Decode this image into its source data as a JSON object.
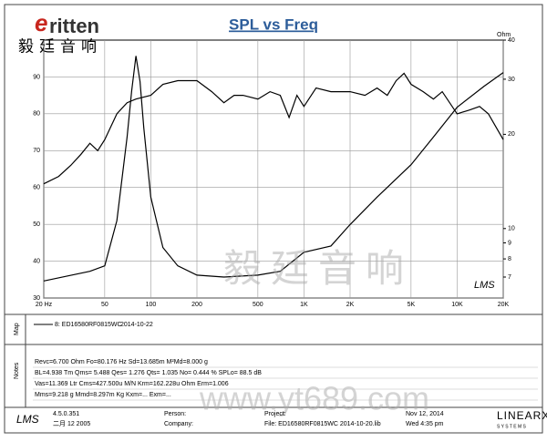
{
  "header": {
    "logo": "ritten",
    "logo_cn": "毅廷音响"
  },
  "watermark": {
    "cn": "毅廷音响",
    "url": "www.yt689.com"
  },
  "chart_data": {
    "type": "line",
    "title": "SPL vs Freq",
    "y2_label": "Ohm",
    "x_scale": "log",
    "y2_scale": "log",
    "grid": true,
    "xlim": [
      20,
      20000
    ],
    "xticks": [
      {
        "value": 20,
        "label": "20  Hz"
      },
      50,
      100,
      200,
      500,
      {
        "value": 1000,
        "label": "1K"
      },
      {
        "value": 2000,
        "label": "2K"
      },
      {
        "value": 5000,
        "label": "5K"
      },
      {
        "value": 10000,
        "label": "10K"
      },
      {
        "value": 20000,
        "label": "20K"
      }
    ],
    "ylim": [
      30,
      100
    ],
    "yticks": [
      30,
      40,
      50,
      60,
      70,
      80,
      90
    ],
    "y2lim": [
      6,
      40
    ],
    "y2ticks": [
      7,
      8,
      9,
      10,
      20,
      30,
      40
    ],
    "series": [
      {
        "name": "8: ED16580RF0815WC",
        "color": "#000000",
        "x": [
          20,
          25,
          30,
          35,
          40,
          45,
          50,
          60,
          70,
          80,
          100,
          120,
          150,
          200,
          250,
          300,
          350,
          400,
          500,
          600,
          700,
          800,
          900,
          1000,
          1200,
          1500,
          2000,
          2500,
          3000,
          3500,
          4000,
          4500,
          5000,
          6000,
          7000,
          8000,
          10000,
          12000,
          14000,
          16000,
          20000
        ],
        "values": [
          61,
          63,
          66,
          69,
          72,
          70,
          73,
          80,
          83,
          84,
          85,
          88,
          89,
          89,
          86,
          83,
          85,
          85,
          84,
          86,
          85,
          79,
          85,
          82,
          87,
          86,
          86,
          85,
          87,
          85,
          89,
          91,
          88,
          86,
          84,
          86,
          80,
          81,
          82,
          80,
          73
        ]
      },
      {
        "axis": "y2",
        "color": "#000000",
        "x": [
          20,
          40,
          50,
          60,
          70,
          75,
          80,
          85,
          90,
          100,
          120,
          150,
          200,
          300,
          500,
          700,
          1000,
          1500,
          2000,
          3000,
          5000,
          7000,
          10000,
          15000,
          20000
        ],
        "values": [
          6.8,
          7.3,
          7.6,
          10.6,
          19.6,
          27.5,
          35.6,
          29.5,
          21,
          12.6,
          8.7,
          7.6,
          7.1,
          7.0,
          7.1,
          7.3,
          8.4,
          8.8,
          10.3,
          12.6,
          16,
          19.6,
          24.4,
          28.5,
          31.5
        ]
      }
    ]
  },
  "map": {
    "section": "Map",
    "entry": "8: ED16580RF0815WC",
    "date": "2014-10-22"
  },
  "notes": {
    "section": "Notes",
    "lines": [
      "Revc=6.700 Ohm  Fo=80.176 Hz  Sd=13.685m M²Md=8.000 g",
      "BL=4.938 Tm  Qms= 5.488  Qes= 1.276  Qts= 1.035  No= 0.444 %  SPLo= 88.5 dB",
      "Vas=11.369 Ltr  Cms=427.500u M/N  Krm=162.228u Ohm  Erm=1.006",
      "Mms=9.218 g  Mmd=8.297m Kg  Kxm=...  Exm=..."
    ]
  },
  "footer": {
    "app": "LMS",
    "version": "4.5.0.351",
    "build": "二月 12 2005",
    "person": "Person:",
    "company": "Company:",
    "project": "Project:",
    "file": "File: ED16580RF0815WC    2014-10-20.lib",
    "date": "Nov 12, 2014",
    "time": "Wed  4:35 pm",
    "brand": "LINEARX",
    "brand_sub": "S Y S T E M S"
  }
}
